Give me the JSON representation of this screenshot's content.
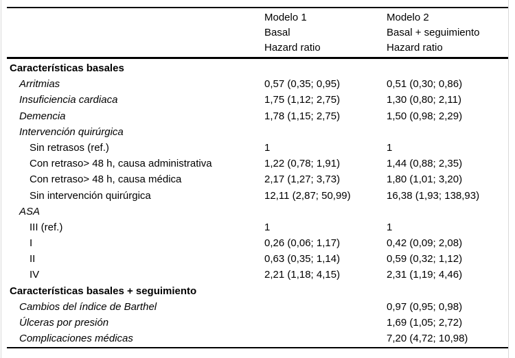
{
  "colors": {
    "text": "#000000",
    "background": "#ffffff",
    "rule": "#000000",
    "page_edge": "#d9d9d9"
  },
  "table": {
    "header": {
      "model1": [
        "Modelo 1",
        "Basal",
        "Hazard ratio"
      ],
      "model2": [
        "Modelo 2",
        "Basal + seguimiento",
        "Hazard ratio"
      ]
    },
    "rows": [
      {
        "label": "Características basales",
        "style": "section",
        "model1": "",
        "model2": ""
      },
      {
        "label": "Arritmias",
        "style": "item",
        "model1": "0,57 (0,35; 0,95)",
        "model2": "0,51 (0,30; 0,86)"
      },
      {
        "label": "Insuficiencia cardiaca",
        "style": "item",
        "model1": "1,75 (1,12; 2,75)",
        "model2": "1,30 (0,80; 2,11)"
      },
      {
        "label": "Demencia",
        "style": "item",
        "model1": "1,78 (1,15; 2,75)",
        "model2": "1,50 (0,98; 2,29)"
      },
      {
        "label": "Intervención quirúrgica",
        "style": "item",
        "model1": "",
        "model2": ""
      },
      {
        "label": "Sin retrasos (ref.)",
        "style": "subitem",
        "model1": "1",
        "model2": "1"
      },
      {
        "label": "Con retraso> 48 h, causa administrativa",
        "style": "subitem",
        "model1": "1,22 (0,78; 1,91)",
        "model2": "1,44 (0,88; 2,35)"
      },
      {
        "label": "Con retraso> 48 h, causa médica",
        "style": "subitem",
        "model1": "2,17 (1,27; 3,73)",
        "model2": "1,80 (1,01; 3,20)"
      },
      {
        "label": "Sin intervención quirúrgica",
        "style": "subitem",
        "model1": "12,11 (2,87; 50,99)",
        "model2": "16,38 (1,93; 138,93)"
      },
      {
        "label": "ASA",
        "style": "item",
        "model1": "",
        "model2": ""
      },
      {
        "label": "III (ref.)",
        "style": "subitem",
        "model1": "1",
        "model2": "1"
      },
      {
        "label": "I",
        "style": "subitem",
        "model1": "0,26 (0,06; 1,17)",
        "model2": "0,42 (0,09; 2,08)"
      },
      {
        "label": "II",
        "style": "subitem",
        "model1": "0,63 (0,35; 1,14)",
        "model2": "0,59 (0,32; 1,12)"
      },
      {
        "label": "IV",
        "style": "subitem",
        "model1": "2,21 (1,18; 4,15)",
        "model2": "2,31 (1,19; 4,46)"
      },
      {
        "label": "Características basales + seguimiento",
        "style": "section",
        "model1": "",
        "model2": ""
      },
      {
        "label": "Cambios del índice de Barthel",
        "style": "item",
        "model1": "",
        "model2": "0,97 (0,95; 0,98)"
      },
      {
        "label": "Úlceras por presión",
        "style": "item",
        "model1": "",
        "model2": "1,69 (1,05; 2,72)"
      },
      {
        "label": "Complicaciones médicas",
        "style": "item",
        "model1": "",
        "model2": "7,20 (4,72; 10,98)"
      }
    ]
  }
}
